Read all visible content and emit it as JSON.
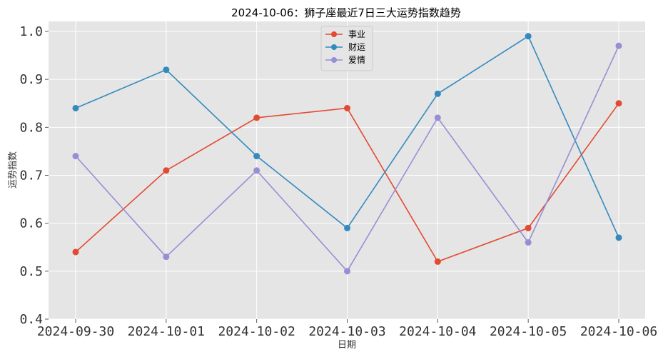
{
  "chart_data": {
    "type": "line",
    "title": "2024-10-06：狮子座最近7日三大运势指数趋势",
    "xlabel": "日期",
    "ylabel": "运势指数",
    "categories": [
      "2024-09-30",
      "2024-10-01",
      "2024-10-02",
      "2024-10-03",
      "2024-10-04",
      "2024-10-05",
      "2024-10-06"
    ],
    "ylim": [
      0.4,
      1.0
    ],
    "yticks": [
      "0.4",
      "0.5",
      "0.6",
      "0.7",
      "0.8",
      "0.9",
      "1.0"
    ],
    "grid": true,
    "legend_position": "top-center",
    "background_color": "#e5e5e5",
    "grid_color": "#ffffff",
    "series": [
      {
        "name": "事业",
        "color": "#e24a33",
        "values": [
          0.54,
          0.71,
          0.82,
          0.84,
          0.52,
          0.59,
          0.85
        ]
      },
      {
        "name": "财运",
        "color": "#348abd",
        "values": [
          0.84,
          0.92,
          0.74,
          0.59,
          0.87,
          0.99,
          0.57
        ]
      },
      {
        "name": "爱情",
        "color": "#988ed5",
        "values": [
          0.74,
          0.53,
          0.71,
          0.5,
          0.82,
          0.56,
          0.97
        ]
      }
    ]
  }
}
